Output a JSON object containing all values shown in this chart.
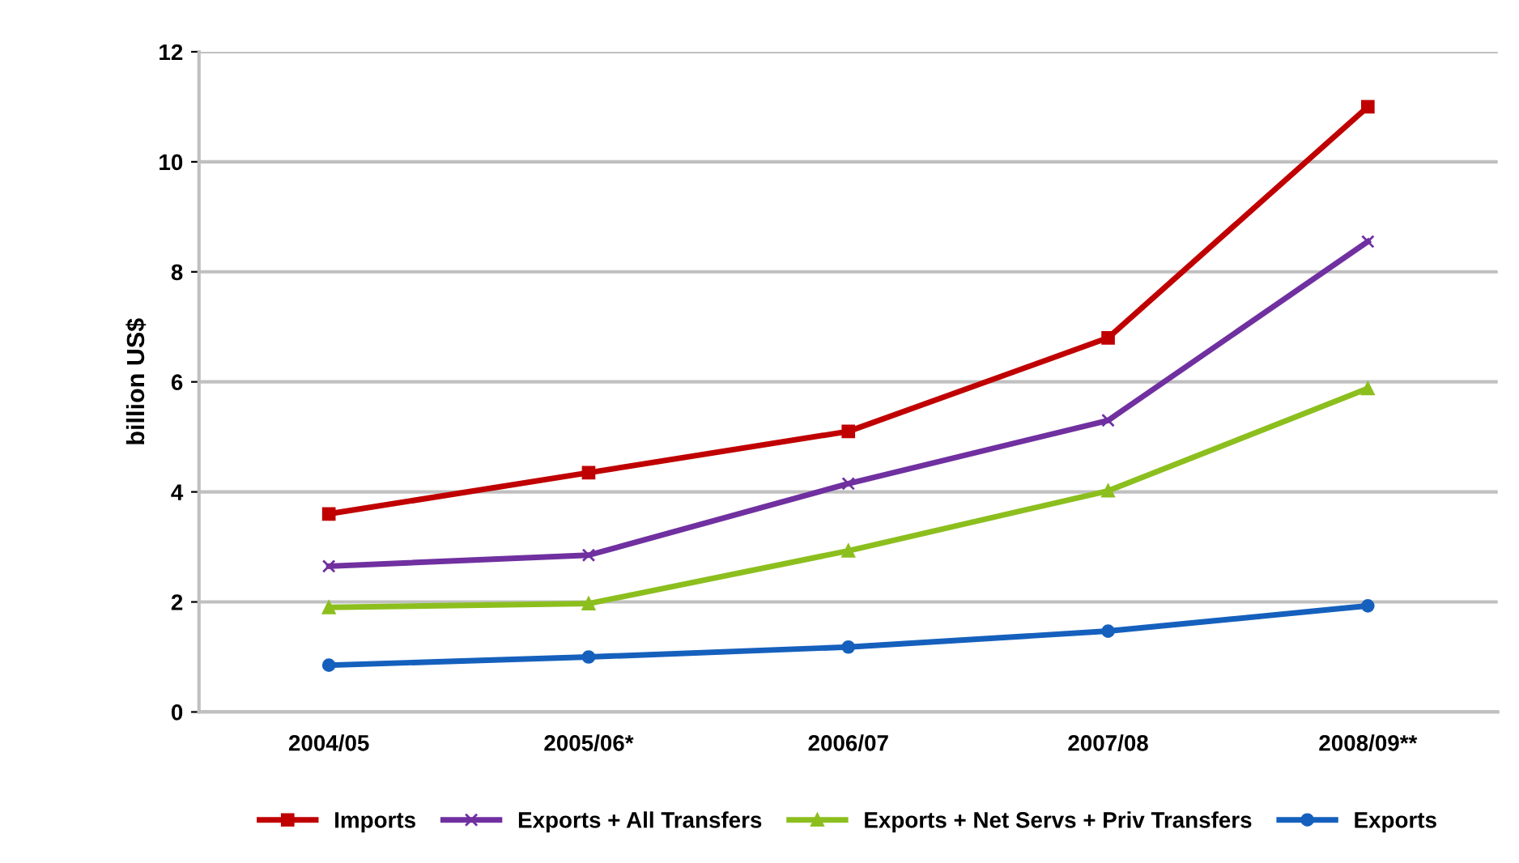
{
  "chart_data": {
    "type": "line",
    "ylabel": "billion US$",
    "categories": [
      "2004/05",
      "2005/06*",
      "2006/07",
      "2007/08",
      "2008/09**"
    ],
    "series": [
      {
        "name": "Imports",
        "color": "#c00000",
        "marker": "square",
        "values": [
          3.6,
          4.35,
          5.1,
          6.8,
          11.0
        ]
      },
      {
        "name": "Exports + All Transfers",
        "color": "#7030a0",
        "marker": "cross",
        "values": [
          2.65,
          2.85,
          4.15,
          5.3,
          8.55
        ]
      },
      {
        "name": "Exports + Net Servs + Priv Transfers",
        "color": "#8cbf1e",
        "marker": "triangle",
        "values": [
          1.9,
          1.97,
          2.93,
          4.02,
          5.88
        ]
      },
      {
        "name": "Exports",
        "color": "#1560bd",
        "marker": "circle",
        "values": [
          0.85,
          1.0,
          1.18,
          1.47,
          1.93
        ]
      }
    ],
    "ylim": [
      0,
      12
    ],
    "yticks": [
      0,
      2,
      4,
      6,
      8,
      10,
      12
    ],
    "grid": "y",
    "legend": "bottom",
    "line_style": "solid"
  }
}
